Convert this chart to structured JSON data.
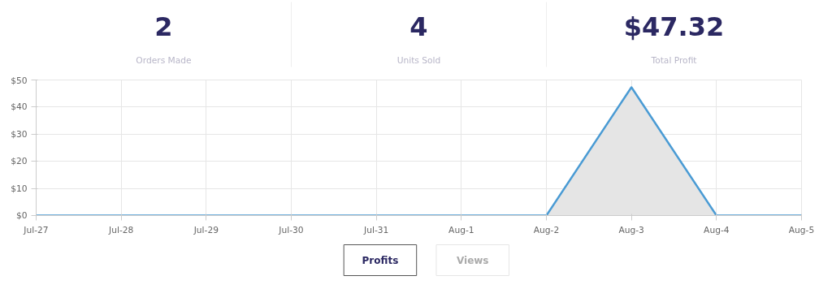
{
  "chart_data": [
    {
      "type": "other",
      "annotations": [
        "2",
        "Orders Made",
        "4",
        "Units Sold",
        "$47.32",
        "Total Profit"
      ]
    },
    {
      "type": "area",
      "categories": [
        "Jul-27",
        "Jul-28",
        "Jul-29",
        "Jul-30",
        "Jul-31",
        "Aug-1",
        "Aug-2",
        "Aug-3",
        "Aug-4",
        "Aug-5"
      ],
      "series": [
        {
          "color": "#4a9bd4",
          "values": [
            0,
            0,
            0,
            0,
            0,
            0,
            0,
            47.32,
            0,
            0
          ]
        }
      ],
      "ylim": [
        0,
        50
      ],
      "yticks": [
        {
          "value": 0,
          "label": "$0"
        },
        {
          "value": 10,
          "label": "$10"
        },
        {
          "value": 20,
          "label": "$20"
        },
        {
          "value": 30,
          "label": "$30"
        },
        {
          "value": 40,
          "label": "$40"
        },
        {
          "value": 50,
          "label": "$50"
        }
      ],
      "grid": true,
      "marker": "none",
      "line_style": "solid",
      "annotations": [
        "Profits",
        "Views"
      ]
    }
  ]
}
